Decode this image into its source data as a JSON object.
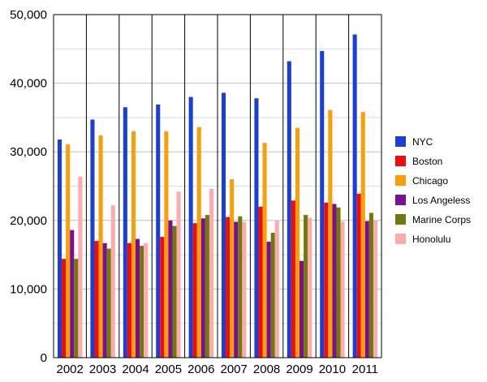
{
  "chart_data": {
    "type": "bar",
    "categories": [
      "2002",
      "2003",
      "2004",
      "2005",
      "2006",
      "2007",
      "2008",
      "2009",
      "2010",
      "2011"
    ],
    "series": [
      {
        "name": "NYC",
        "color": "#1a3fd6",
        "values": [
          31800,
          34700,
          36500,
          36900,
          38000,
          38600,
          37800,
          43200,
          44700,
          47100
        ]
      },
      {
        "name": "Boston",
        "color": "#f20b0b",
        "values": [
          14400,
          17000,
          16700,
          17600,
          19600,
          20500,
          22000,
          22900,
          22600,
          23900
        ]
      },
      {
        "name": "Chicago",
        "color": "#fa9f05",
        "values": [
          31100,
          32400,
          33000,
          33000,
          33600,
          26000,
          31300,
          33500,
          36100,
          35800
        ]
      },
      {
        "name": "Los Angeless",
        "color": "#7a0f97",
        "values": [
          18600,
          16700,
          17300,
          20000,
          20300,
          19800,
          16900,
          14100,
          22400,
          19900
        ]
      },
      {
        "name": "Marine Corps",
        "color": "#6f7a0b",
        "values": [
          14400,
          15900,
          16300,
          19200,
          20800,
          20600,
          18200,
          20800,
          21900,
          21100
        ]
      },
      {
        "name": "Honolulu",
        "color": "#ffaaad",
        "values": [
          26400,
          22200,
          16700,
          24200,
          24600,
          19800,
          20000,
          20400,
          19800,
          20000
        ]
      }
    ],
    "ylim": [
      0,
      50000
    ],
    "yticks": [
      "0",
      "10,000",
      "20,000",
      "30,000",
      "40,000",
      "50,000"
    ],
    "title": "",
    "xlabel": "",
    "ylabel": "",
    "grid": true,
    "legend": "right"
  }
}
